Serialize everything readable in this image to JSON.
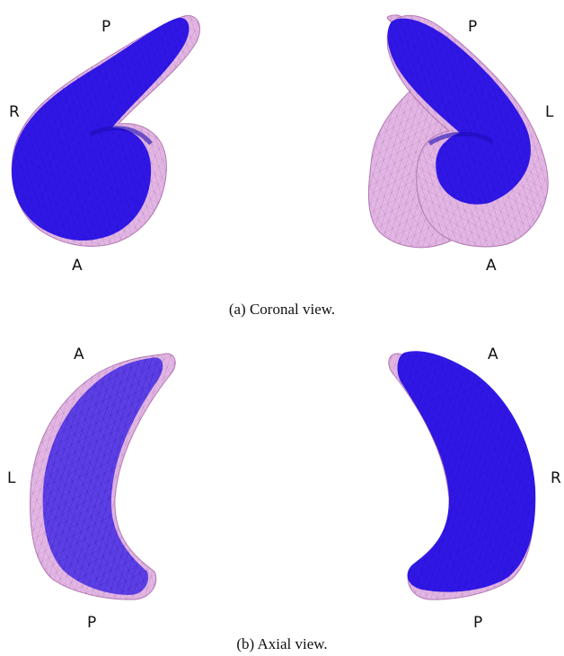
{
  "colors": {
    "pink_shape": "#e3b6e3",
    "pink_edge": "#b37ab3",
    "blue_shape": "#2a12e6",
    "blue_dark": "#1c0bb5",
    "background": "#ffffff"
  },
  "panels": [
    {
      "caption": "(a) Coronal view.",
      "left": {
        "labels": [
          "P",
          "R",
          "A"
        ]
      },
      "right": {
        "labels": [
          "P",
          "L",
          "A"
        ]
      }
    },
    {
      "caption": "(b) Axial view.",
      "left": {
        "labels": [
          "A",
          "L",
          "P"
        ]
      },
      "right": {
        "labels": [
          "A",
          "R",
          "P"
        ]
      }
    }
  ]
}
